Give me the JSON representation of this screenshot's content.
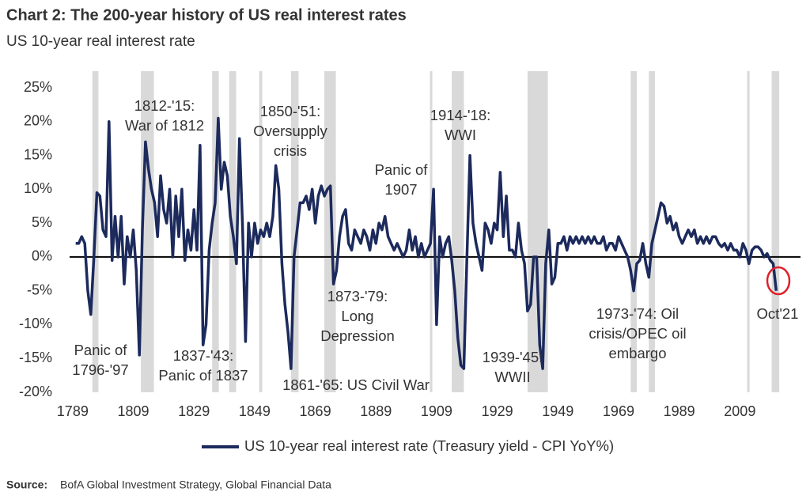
{
  "chart_data": {
    "type": "line",
    "title": "Chart 2: The 200-year history of US real interest rates",
    "subtitle": "US 10-year real interest rate",
    "x": [
      1790,
      1791,
      1792,
      1793,
      1794,
      1795,
      1796,
      1797,
      1798,
      1799,
      1800,
      1801,
      1802,
      1803,
      1804,
      1805,
      1806,
      1807,
      1808,
      1809,
      1810,
      1811,
      1812,
      1813,
      1814,
      1815,
      1816,
      1817,
      1818,
      1819,
      1820,
      1821,
      1822,
      1823,
      1824,
      1825,
      1826,
      1827,
      1828,
      1829,
      1830,
      1831,
      1832,
      1833,
      1834,
      1835,
      1836,
      1837,
      1838,
      1839,
      1840,
      1841,
      1842,
      1843,
      1844,
      1845,
      1846,
      1847,
      1848,
      1849,
      1850,
      1851,
      1852,
      1853,
      1854,
      1855,
      1856,
      1857,
      1858,
      1859,
      1860,
      1861,
      1862,
      1863,
      1864,
      1865,
      1866,
      1867,
      1868,
      1869,
      1870,
      1871,
      1872,
      1873,
      1874,
      1875,
      1876,
      1877,
      1878,
      1879,
      1880,
      1881,
      1882,
      1883,
      1884,
      1885,
      1886,
      1887,
      1888,
      1889,
      1890,
      1891,
      1892,
      1893,
      1894,
      1895,
      1896,
      1897,
      1898,
      1899,
      1900,
      1901,
      1902,
      1903,
      1904,
      1905,
      1906,
      1907,
      1908,
      1909,
      1910,
      1911,
      1912,
      1913,
      1914,
      1915,
      1916,
      1917,
      1918,
      1919,
      1920,
      1921,
      1922,
      1923,
      1924,
      1925,
      1926,
      1927,
      1928,
      1929,
      1930,
      1931,
      1932,
      1933,
      1934,
      1935,
      1936,
      1937,
      1938,
      1939,
      1940,
      1941,
      1942,
      1943,
      1944,
      1945,
      1946,
      1947,
      1948,
      1949,
      1950,
      1951,
      1952,
      1953,
      1954,
      1955,
      1956,
      1957,
      1958,
      1959,
      1960,
      1961,
      1962,
      1963,
      1964,
      1965,
      1966,
      1967,
      1968,
      1969,
      1970,
      1971,
      1972,
      1973,
      1974,
      1975,
      1976,
      1977,
      1978,
      1979,
      1980,
      1981,
      1982,
      1983,
      1984,
      1985,
      1986,
      1987,
      1988,
      1989,
      1990,
      1991,
      1992,
      1993,
      1994,
      1995,
      1996,
      1997,
      1998,
      1999,
      2000,
      2001,
      2002,
      2003,
      2004,
      2005,
      2006,
      2007,
      2008,
      2009,
      2010,
      2011,
      2012,
      2013,
      2014,
      2015,
      2016,
      2017,
      2018,
      2019,
      2020,
      2021
    ],
    "series": [
      {
        "name": "US 10-year real interest rate (Treasury yield - CPI YoY%)",
        "color": "#1c2a5c",
        "values": [
          2,
          2,
          3,
          2,
          -5,
          -8.5,
          0,
          9.5,
          9,
          4,
          3,
          20,
          -0.5,
          6,
          0,
          6,
          -4,
          3,
          0,
          4,
          -2,
          -14.5,
          4,
          17,
          13,
          10,
          8,
          3,
          12,
          7,
          5,
          10,
          0,
          9,
          3,
          10,
          -0.5,
          4,
          1,
          7,
          1,
          16.5,
          -13,
          -10,
          1,
          5,
          8,
          20.5,
          10,
          14,
          12,
          6,
          3,
          -1,
          17.5,
          5,
          -12.5,
          5,
          0,
          5,
          2,
          4,
          3,
          5,
          3,
          6,
          13.5,
          10,
          -1,
          -7,
          -11,
          -16.5,
          0,
          4,
          8,
          8,
          9,
          7,
          10,
          5,
          9,
          10.5,
          9,
          10,
          10.5,
          -4,
          -2,
          3,
          6,
          7,
          2,
          1,
          4,
          3,
          2,
          4,
          3,
          1,
          4,
          2,
          5,
          4,
          6,
          3,
          2,
          1,
          2,
          1,
          0,
          1,
          4,
          1,
          3,
          0,
          2,
          0,
          1,
          2,
          10,
          -10,
          3,
          0,
          2,
          3,
          -0.5,
          -5,
          -12,
          -16,
          -16.5,
          0,
          15,
          5,
          2,
          0,
          -2,
          5,
          4,
          2,
          5,
          4,
          12.5,
          3,
          9,
          1,
          1,
          0,
          5,
          1,
          -1,
          -8,
          -7,
          0,
          0,
          -13,
          -16.5,
          -1,
          4,
          -4,
          -3,
          2,
          2,
          3,
          1,
          3,
          2,
          3,
          2,
          3,
          2,
          3,
          2,
          3,
          2,
          2,
          3,
          1,
          2,
          2,
          1,
          3,
          2,
          1,
          0,
          -2,
          -5,
          -1,
          -0.5,
          2,
          -1,
          -3,
          2,
          4,
          6,
          8,
          7.5,
          5,
          6,
          4,
          5,
          3,
          2,
          3,
          4,
          3,
          4,
          2,
          3,
          2,
          3,
          2,
          3,
          3,
          2,
          1.5,
          2,
          1,
          2,
          1,
          1,
          0,
          2,
          1,
          -1,
          1,
          1.5,
          1.5,
          1,
          0,
          0.5,
          -0.5,
          -1,
          -5
        ]
      }
    ],
    "xlim": [
      1788,
      2029
    ],
    "xticks": [
      1789,
      1809,
      1829,
      1849,
      1869,
      1889,
      1909,
      1929,
      1949,
      1969,
      1989,
      2009
    ],
    "ylim": [
      -20,
      25
    ],
    "yticks": [
      {
        "value": -20,
        "label": "-20%"
      },
      {
        "value": -15,
        "label": "-15%"
      },
      {
        "value": -10,
        "label": "-10%"
      },
      {
        "value": -5,
        "label": "-5%"
      },
      {
        "value": 0,
        "label": "0%"
      },
      {
        "value": 5,
        "label": "5%"
      },
      {
        "value": 10,
        "label": "10%"
      },
      {
        "value": 15,
        "label": "15%"
      },
      {
        "value": 20,
        "label": "20%"
      },
      {
        "value": 25,
        "label": "25%"
      }
    ],
    "shaded_periods": [
      [
        1795.5,
        1797.5
      ],
      [
        1811.5,
        1815.8
      ],
      [
        1835,
        1837.2
      ],
      [
        1840.6,
        1842.9
      ],
      [
        1850.5,
        1851.5
      ],
      [
        1861,
        1863.5
      ],
      [
        1872,
        1875.8
      ],
      [
        1906.8,
        1907.6
      ],
      [
        1914,
        1918
      ],
      [
        1939,
        1945.7
      ],
      [
        1973,
        1975
      ],
      [
        1979,
        1981
      ],
      [
        2011.4,
        2012.2
      ],
      [
        2019.5,
        2022
      ]
    ],
    "annotations": [
      {
        "lines": [
          "Panic of",
          "1796-'97"
        ]
      },
      {
        "lines": [
          "1812-'15:",
          "War of 1812"
        ]
      },
      {
        "lines": [
          "1837-'43:",
          "Panic of 1837"
        ]
      },
      {
        "lines": [
          "1850-'51:",
          "Oversupply",
          "crisis"
        ]
      },
      {
        "lines": [
          "1861-'65: US Civil War"
        ]
      },
      {
        "lines": [
          "1873-'79:",
          "Long",
          "Depression"
        ]
      },
      {
        "lines": [
          "Panic of",
          "1907"
        ]
      },
      {
        "lines": [
          "1914-'18:",
          "WWI"
        ]
      },
      {
        "lines": [
          "1939-'45:",
          "WWII"
        ]
      },
      {
        "lines": [
          "1973-'74: Oil",
          "crisis/OPEC oil",
          "embargo"
        ]
      },
      {
        "lines": [
          "Oct'21"
        ]
      }
    ],
    "source_label": "Source:",
    "source": "BofA Global Investment Strategy, Global Financial Data"
  }
}
